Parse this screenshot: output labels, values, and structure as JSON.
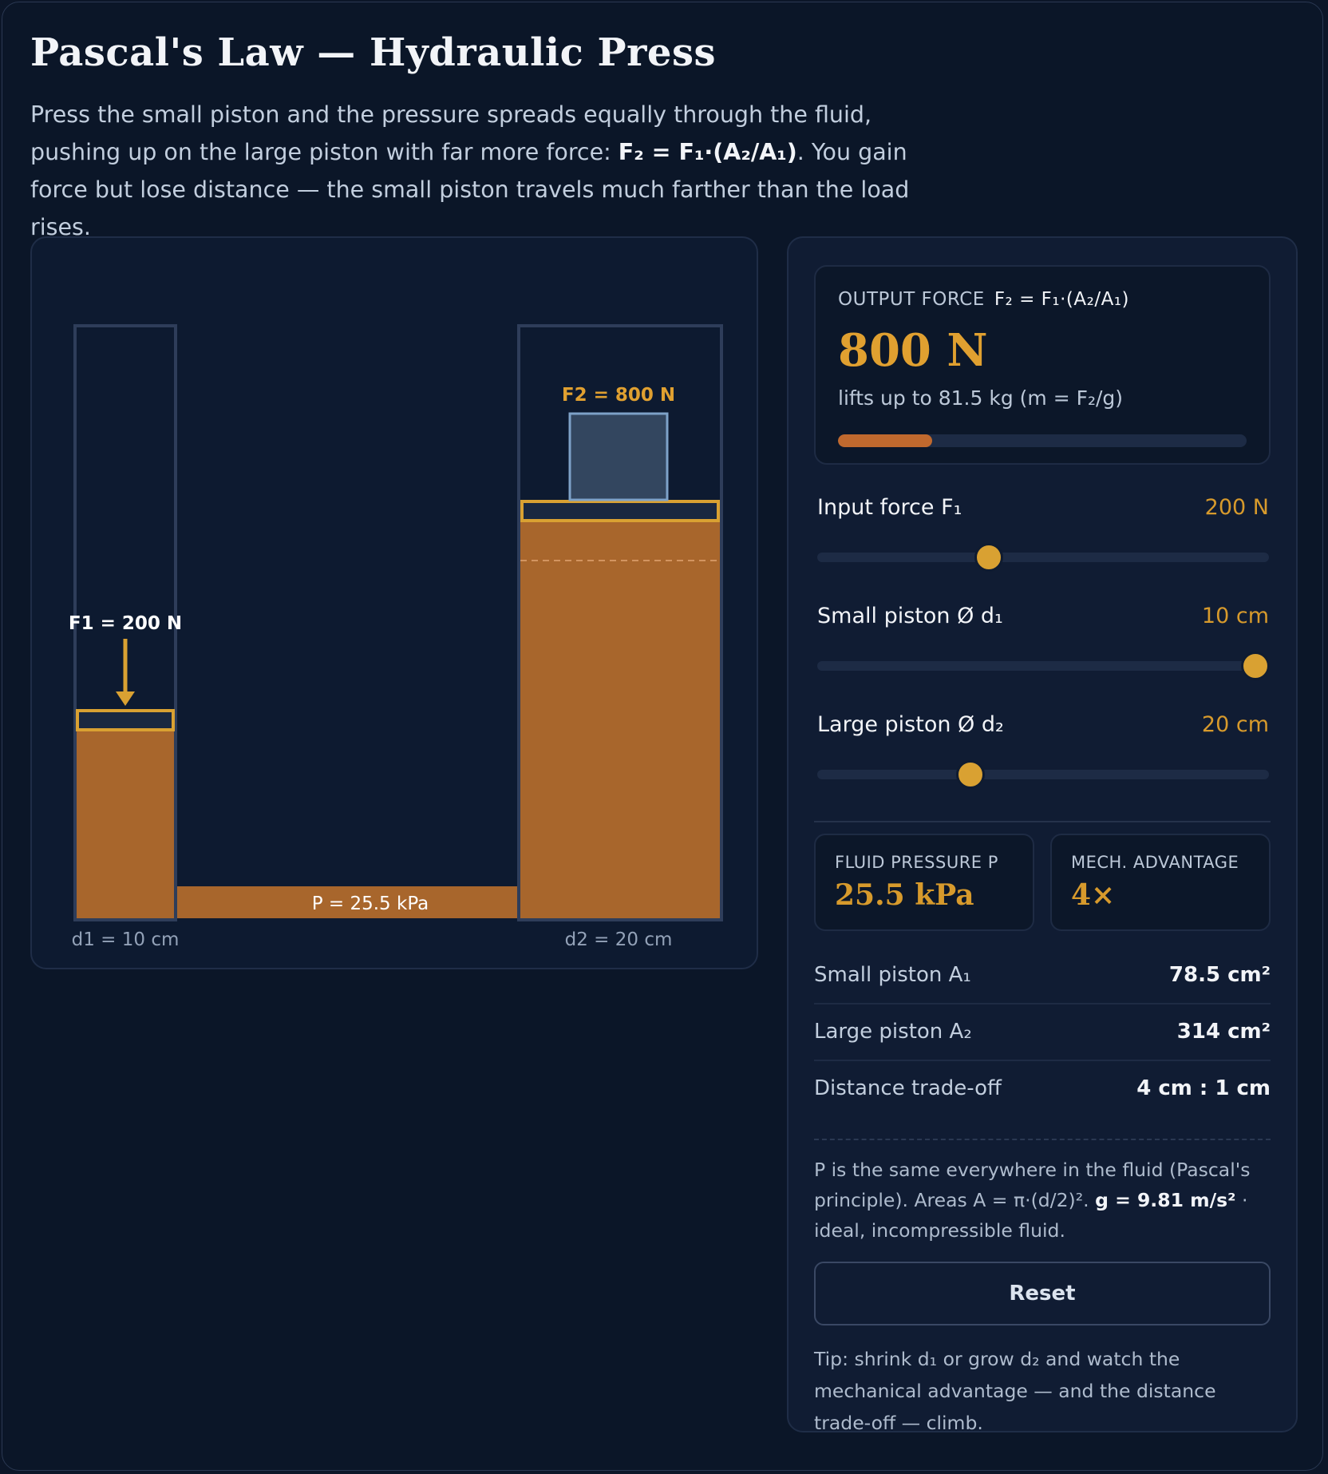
{
  "title": "Pascal's Law — Hydraulic Press",
  "intro": {
    "line1": "Press the small piston and the pressure spreads equally through the fluid, pushing up on the large piston with far more force: ",
    "formula": "F₂ = F₁·(A₂/A₁)",
    "line2": ". You gain force but lose distance — the small piston travels much farther than the load rises."
  },
  "sim": {
    "f1_label": "F1 = 200 N",
    "f2_label": "F2 = 800 N",
    "pressure_label": "P = 25.5 kPa",
    "d1_label": "d1 = 10 cm",
    "d2_label": "d2 = 20 cm",
    "fluid_color": "#a8662c",
    "accent_color": "#d9a132"
  },
  "output": {
    "caption": "OUTPUT FORCE",
    "formula": "F₂ = F₁·(A₂/A₁)",
    "value": "800 N",
    "lifts": "lifts up to 81.5 kg  (m = F₂/g)",
    "progress": 0.23
  },
  "sliders": [
    {
      "name": "Input force F₁",
      "value": "200 N",
      "fraction": 0.38
    },
    {
      "name": "Small piston Ø d₁",
      "value": "10 cm",
      "fraction": 0.97
    },
    {
      "name": "Large piston Ø d₂",
      "value": "20 cm",
      "fraction": 0.34
    }
  ],
  "stats": {
    "pressure_label": "FLUID PRESSURE P",
    "pressure_value": "25.5 kPa",
    "ma_label": "MECH. ADVANTAGE",
    "ma_value": "4×"
  },
  "rows": [
    {
      "label": "Small piston A₁",
      "value": "78.5 cm²"
    },
    {
      "label": "Large piston A₂",
      "value": "314 cm²"
    },
    {
      "label": "Distance trade-off",
      "value": "4 cm : 1 cm"
    }
  ],
  "note": {
    "text1": "P is the same everywhere in the fluid (Pascal's principle). Areas A = π·(d/2)². ",
    "bold": "g = 9.81 m/s²",
    "text2": " · ideal, incompressible fluid."
  },
  "reset_label": "Reset",
  "tip": "Tip: shrink d₁ or grow d₂ and watch the mechanical advantage — and the distance trade-off — climb."
}
